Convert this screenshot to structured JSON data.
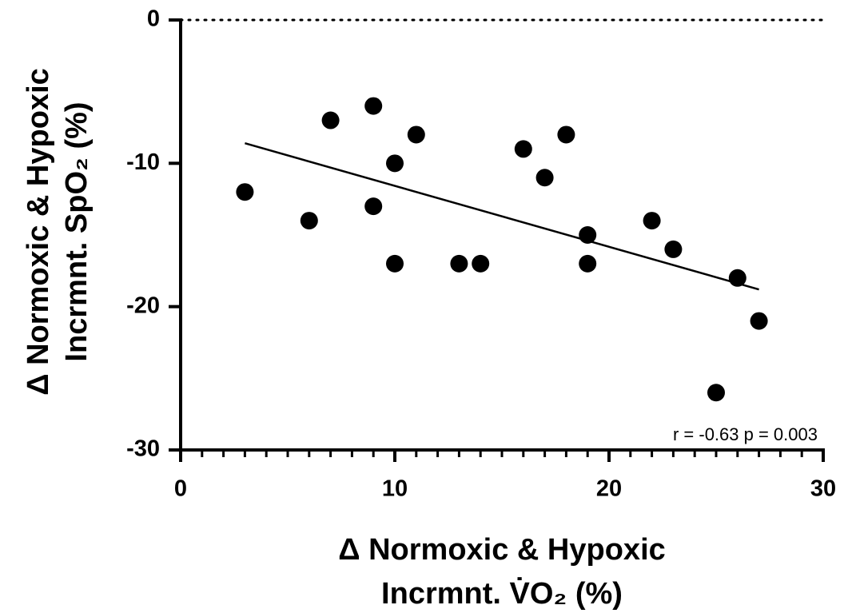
{
  "chart_data": {
    "type": "scatter",
    "xlabel": [
      "Δ Normoxic & Hypoxic",
      "Incrmnt. V̇O₂ (%)"
    ],
    "ylabel": [
      "Δ Normoxic & Hypoxic",
      "Incrmnt. SpO₂ (%)"
    ],
    "annotation": "r = -0.63 p = 0.003",
    "color": "#000000",
    "x": [
      3,
      6,
      7,
      9,
      9,
      10,
      10,
      11,
      13,
      14,
      16,
      17,
      18,
      19,
      19,
      22,
      23,
      25,
      26,
      27
    ],
    "values": [
      -12,
      -14,
      -7,
      -6,
      -13,
      -10,
      -17,
      -8,
      -17,
      -17,
      -9,
      -11,
      -8,
      -15,
      -17,
      -14,
      -16,
      -26,
      -18,
      -21
    ],
    "fit": {
      "x": [
        3,
        27
      ],
      "y": [
        -8.6,
        -18.8
      ]
    },
    "xlim": [
      0,
      30
    ],
    "ylim": [
      -30,
      0
    ],
    "xticks": [
      0,
      10,
      20,
      30
    ],
    "yticks": [
      0,
      -10,
      -20,
      -30
    ],
    "x_minor_tick_step": 1
  }
}
